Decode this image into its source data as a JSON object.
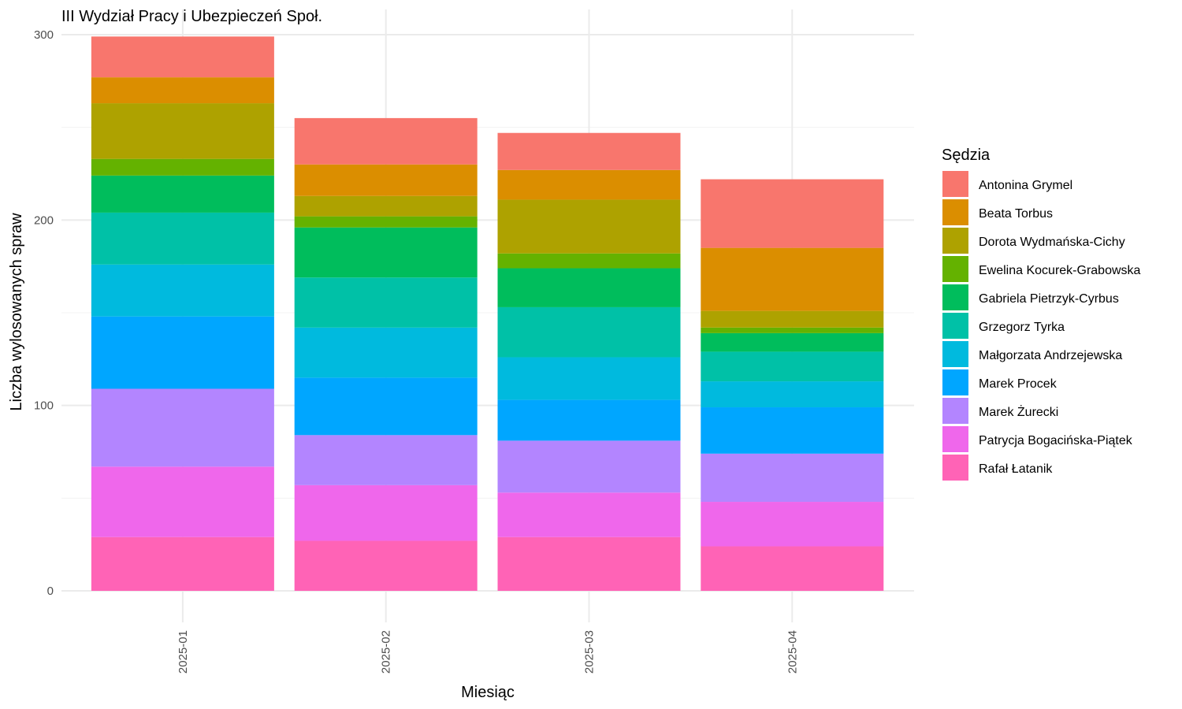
{
  "chart_data": {
    "type": "bar",
    "stacked": true,
    "title": "III Wydział Pracy i Ubezpieczeń Społ.",
    "xlabel": "Miesiąc",
    "ylabel": "Liczba wylosowanych spraw",
    "ylim": [
      0,
      300
    ],
    "yticks": [
      0,
      100,
      200,
      300
    ],
    "grid": true,
    "legend_title": "Sędzia",
    "legend_position": "right",
    "categories": [
      "2025-01",
      "2025-02",
      "2025-03",
      "2025-04"
    ],
    "series": [
      {
        "name": "Antonina Grymel",
        "color": "#F8766D",
        "values": [
          22,
          25,
          20,
          37
        ]
      },
      {
        "name": "Beata Torbus",
        "color": "#DB8E00",
        "values": [
          14,
          17,
          16,
          34
        ]
      },
      {
        "name": "Dorota Wydmańska-Cichy",
        "color": "#AEA200",
        "values": [
          30,
          11,
          29,
          9
        ]
      },
      {
        "name": "Ewelina Kocurek-Grabowska",
        "color": "#64B200",
        "values": [
          9,
          6,
          8,
          3
        ]
      },
      {
        "name": "Gabriela Pietrzyk-Cyrbus",
        "color": "#00BD5C",
        "values": [
          20,
          27,
          21,
          10
        ]
      },
      {
        "name": "Grzegorz Tyrka",
        "color": "#00C1A7",
        "values": [
          28,
          27,
          27,
          16
        ]
      },
      {
        "name": "Małgorzata Andrzejewska",
        "color": "#00BADE",
        "values": [
          28,
          27,
          23,
          14
        ]
      },
      {
        "name": "Marek Procek",
        "color": "#00A6FF",
        "values": [
          39,
          31,
          22,
          25
        ]
      },
      {
        "name": "Marek Żurecki",
        "color": "#B385FF",
        "values": [
          42,
          27,
          28,
          26
        ]
      },
      {
        "name": "Patrycja Bogacińska-Piątek",
        "color": "#EF67EB",
        "values": [
          38,
          30,
          24,
          24
        ]
      },
      {
        "name": "Rafał Łatanik",
        "color": "#FF63B6",
        "values": [
          29,
          27,
          29,
          24
        ]
      }
    ]
  }
}
